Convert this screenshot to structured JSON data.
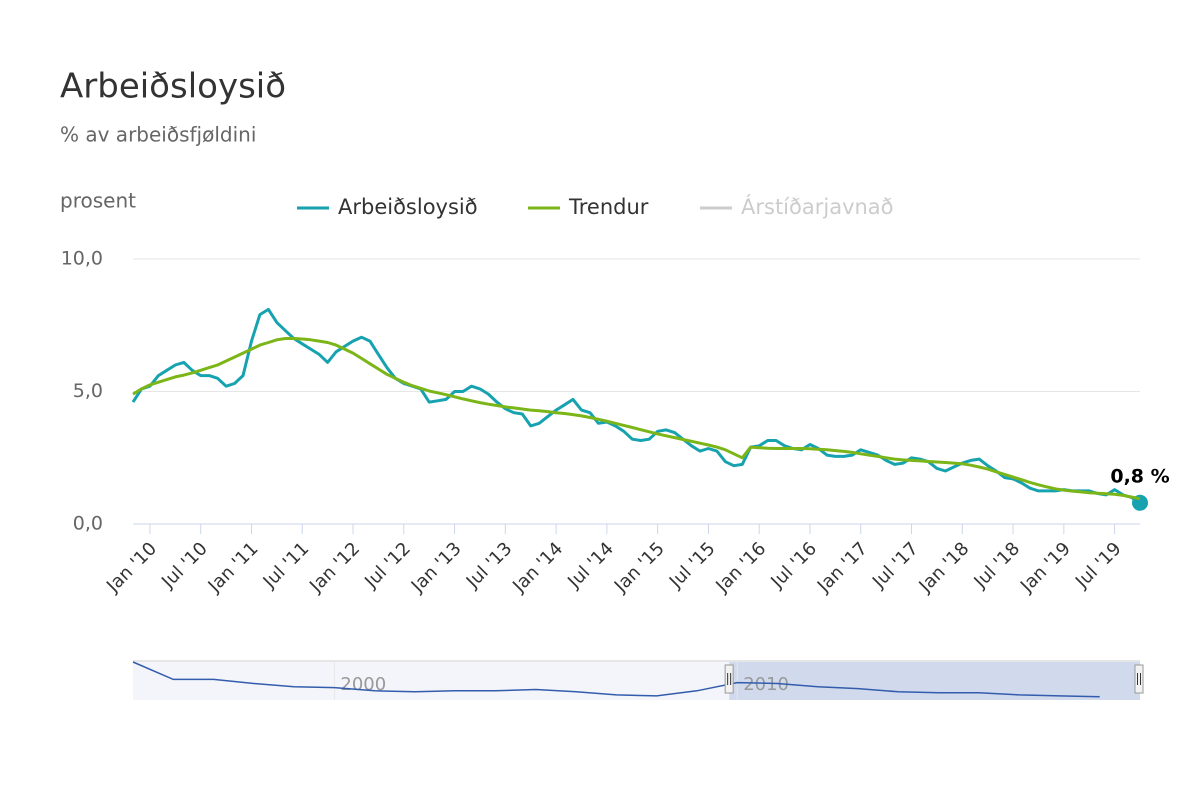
{
  "chart_data": {
    "type": "line",
    "title": "Arbeiðsloysið",
    "subtitle": "% av arbeiðsfjøldini",
    "y_label": "prosent",
    "x": [
      "2009-11",
      "2009-12",
      "2010-01",
      "2010-02",
      "2010-03",
      "2010-04",
      "2010-05",
      "2010-06",
      "2010-07",
      "2010-08",
      "2010-09",
      "2010-10",
      "2010-11",
      "2010-12",
      "2011-01",
      "2011-02",
      "2011-03",
      "2011-04",
      "2011-05",
      "2011-06",
      "2011-07",
      "2011-08",
      "2011-09",
      "2011-10",
      "2011-11",
      "2011-12",
      "2012-01",
      "2012-02",
      "2012-03",
      "2012-04",
      "2012-05",
      "2012-06",
      "2012-07",
      "2012-08",
      "2012-09",
      "2012-10",
      "2012-11",
      "2012-12",
      "2013-01",
      "2013-02",
      "2013-03",
      "2013-04",
      "2013-05",
      "2013-06",
      "2013-07",
      "2013-08",
      "2013-09",
      "2013-10",
      "2013-11",
      "2013-12",
      "2014-01",
      "2014-02",
      "2014-03",
      "2014-04",
      "2014-05",
      "2014-06",
      "2014-07",
      "2014-08",
      "2014-09",
      "2014-10",
      "2014-11",
      "2014-12",
      "2015-01",
      "2015-02",
      "2015-03",
      "2015-04",
      "2015-05",
      "2015-06",
      "2015-07",
      "2015-08",
      "2015-09",
      "2015-10",
      "2015-11",
      "2015-12",
      "2016-01",
      "2016-02",
      "2016-03",
      "2016-04",
      "2016-05",
      "2016-06",
      "2016-07",
      "2016-08",
      "2016-09",
      "2016-10",
      "2016-11",
      "2016-12",
      "2017-01",
      "2017-02",
      "2017-03",
      "2017-04",
      "2017-05",
      "2017-06",
      "2017-07",
      "2017-08",
      "2017-09",
      "2017-10",
      "2017-11",
      "2017-12",
      "2018-01",
      "2018-02",
      "2018-03",
      "2018-04",
      "2018-05",
      "2018-06",
      "2018-07",
      "2018-08",
      "2018-09",
      "2018-10",
      "2018-11",
      "2018-12",
      "2019-01",
      "2019-02",
      "2019-03",
      "2019-04",
      "2019-05",
      "2019-06",
      "2019-07",
      "2019-08",
      "2019-09",
      "2019-10"
    ],
    "series": [
      {
        "name": "Arbeiðsloysið",
        "color": "#17a2b0",
        "values": [
          4.6,
          5.1,
          5.2,
          5.6,
          5.8,
          6.0,
          6.1,
          5.8,
          5.6,
          5.6,
          5.5,
          5.2,
          5.3,
          5.6,
          6.9,
          7.9,
          8.1,
          7.6,
          7.3,
          7.0,
          6.8,
          6.6,
          6.4,
          6.1,
          6.5,
          6.7,
          6.9,
          7.05,
          6.9,
          6.4,
          5.9,
          5.5,
          5.3,
          5.2,
          5.1,
          4.6,
          4.65,
          4.7,
          5.0,
          5.0,
          5.2,
          5.1,
          4.9,
          4.6,
          4.35,
          4.2,
          4.15,
          3.7,
          3.8,
          4.05,
          4.3,
          4.5,
          4.7,
          4.3,
          4.2,
          3.8,
          3.85,
          3.7,
          3.5,
          3.2,
          3.15,
          3.2,
          3.5,
          3.55,
          3.45,
          3.2,
          2.95,
          2.75,
          2.85,
          2.75,
          2.35,
          2.2,
          2.25,
          2.9,
          2.95,
          3.15,
          3.15,
          2.95,
          2.85,
          2.8,
          3.0,
          2.85,
          2.6,
          2.55,
          2.55,
          2.6,
          2.8,
          2.7,
          2.6,
          2.4,
          2.25,
          2.3,
          2.5,
          2.45,
          2.35,
          2.1,
          2.0,
          2.15,
          2.3,
          2.4,
          2.45,
          2.2,
          2.0,
          1.75,
          1.7,
          1.55,
          1.35,
          1.25,
          1.25,
          1.25,
          1.3,
          1.25,
          1.25,
          1.25,
          1.15,
          1.1,
          1.3,
          1.1,
          1.0,
          0.8
        ],
        "value_labels": [
          null,
          null,
          null,
          null,
          null,
          null,
          null,
          null,
          null,
          null,
          null,
          null,
          null,
          null,
          null,
          null,
          null,
          null,
          null,
          null,
          null,
          null,
          null,
          null,
          null,
          null,
          null,
          null,
          null,
          null,
          null,
          null,
          null,
          null,
          null,
          null,
          null,
          null,
          null,
          null,
          null,
          null,
          null,
          null,
          null,
          null,
          null,
          null,
          null,
          null,
          null,
          null,
          null,
          null,
          null,
          null,
          null,
          null,
          null,
          null,
          null,
          null,
          null,
          null,
          null,
          null,
          null,
          null,
          null,
          null,
          null,
          null,
          null,
          null,
          null,
          null,
          null,
          null,
          null,
          null,
          null,
          null,
          null,
          null,
          null,
          null,
          null,
          null,
          null,
          null,
          null,
          null,
          null,
          null,
          null,
          null,
          null,
          null,
          null,
          null,
          null,
          null,
          null,
          null,
          null,
          null,
          null,
          null,
          null,
          null,
          null,
          null,
          null,
          null,
          null,
          null,
          null,
          null,
          null,
          "0,8 %"
        ]
      },
      {
        "name": "Trendur",
        "color": "#7cb518",
        "values": [
          4.9,
          5.1,
          5.25,
          5.35,
          5.45,
          5.55,
          5.62,
          5.7,
          5.8,
          5.9,
          6.0,
          6.15,
          6.3,
          6.45,
          6.6,
          6.75,
          6.85,
          6.95,
          7.0,
          7.0,
          6.98,
          6.95,
          6.9,
          6.85,
          6.75,
          6.6,
          6.45,
          6.25,
          6.05,
          5.85,
          5.65,
          5.5,
          5.35,
          5.22,
          5.12,
          5.02,
          4.95,
          4.88,
          4.8,
          4.72,
          4.65,
          4.58,
          4.52,
          4.47,
          4.42,
          4.38,
          4.34,
          4.3,
          4.27,
          4.24,
          4.2,
          4.17,
          4.13,
          4.08,
          4.02,
          3.95,
          3.88,
          3.8,
          3.72,
          3.64,
          3.56,
          3.48,
          3.4,
          3.33,
          3.26,
          3.19,
          3.12,
          3.05,
          2.98,
          2.9,
          2.8,
          2.65,
          2.5,
          2.9,
          2.88,
          2.86,
          2.85,
          2.85,
          2.85,
          2.85,
          2.84,
          2.82,
          2.8,
          2.77,
          2.74,
          2.7,
          2.65,
          2.6,
          2.55,
          2.5,
          2.45,
          2.42,
          2.4,
          2.38,
          2.36,
          2.34,
          2.32,
          2.3,
          2.27,
          2.22,
          2.15,
          2.07,
          1.97,
          1.87,
          1.77,
          1.67,
          1.57,
          1.48,
          1.4,
          1.33,
          1.28,
          1.24,
          1.21,
          1.18,
          1.16,
          1.14,
          1.12,
          1.08,
          1.02,
          0.95
        ]
      },
      {
        "name": "Árstíðarjavnað",
        "color": "#cccccc",
        "visible": false
      }
    ],
    "xlim": [
      "2009-11",
      "2019-10"
    ],
    "xticks": [
      {
        "value": "2010-01",
        "label": "Jan '10"
      },
      {
        "value": "2010-07",
        "label": "Jul '10"
      },
      {
        "value": "2011-01",
        "label": "Jan '11"
      },
      {
        "value": "2011-07",
        "label": "Jul '11"
      },
      {
        "value": "2012-01",
        "label": "Jan '12"
      },
      {
        "value": "2012-07",
        "label": "Jul '12"
      },
      {
        "value": "2013-01",
        "label": "Jan '13"
      },
      {
        "value": "2013-07",
        "label": "Jul '13"
      },
      {
        "value": "2014-01",
        "label": "Jan '14"
      },
      {
        "value": "2014-07",
        "label": "Jul '14"
      },
      {
        "value": "2015-01",
        "label": "Jan '15"
      },
      {
        "value": "2015-07",
        "label": "Jul '15"
      },
      {
        "value": "2016-01",
        "label": "Jan '16"
      },
      {
        "value": "2016-07",
        "label": "Jul '16"
      },
      {
        "value": "2017-01",
        "label": "Jan '17"
      },
      {
        "value": "2017-07",
        "label": "Jul '17"
      },
      {
        "value": "2018-01",
        "label": "Jan '18"
      },
      {
        "value": "2018-07",
        "label": "Jul '18"
      },
      {
        "value": "2019-01",
        "label": "Jan '19"
      },
      {
        "value": "2019-07",
        "label": "Jul '19"
      }
    ],
    "ylim": [
      0,
      10
    ],
    "yticks": [
      {
        "value": 0,
        "label": "0,0"
      },
      {
        "value": 5,
        "label": "5,0"
      },
      {
        "value": 10,
        "label": "10,0"
      }
    ],
    "grid": true,
    "navigator": {
      "x": [
        1995,
        1996,
        1997,
        1998,
        1999,
        2000,
        2001,
        2002,
        2003,
        2004,
        2005,
        2006,
        2007,
        2008,
        2009,
        2010,
        2011,
        2012,
        2013,
        2014,
        2015,
        2016,
        2017,
        2018,
        2019
      ],
      "values": [
        12,
        6.5,
        6.5,
        5.2,
        4.2,
        3.9,
        2.9,
        2.6,
        2.9,
        2.9,
        3.3,
        2.6,
        1.6,
        1.3,
        2.9,
        5.5,
        5.2,
        4.2,
        3.6,
        2.6,
        2.3,
        2.3,
        1.6,
        1.3,
        1.0
      ],
      "color": "#335cad",
      "xlim": [
        1995,
        2020
      ],
      "ylim": [
        0,
        12
      ],
      "xticks": [
        {
          "value": 2000,
          "label": "2000"
        },
        {
          "value": 2010,
          "label": "2010"
        }
      ],
      "selection": [
        2009.8,
        2020
      ]
    }
  }
}
